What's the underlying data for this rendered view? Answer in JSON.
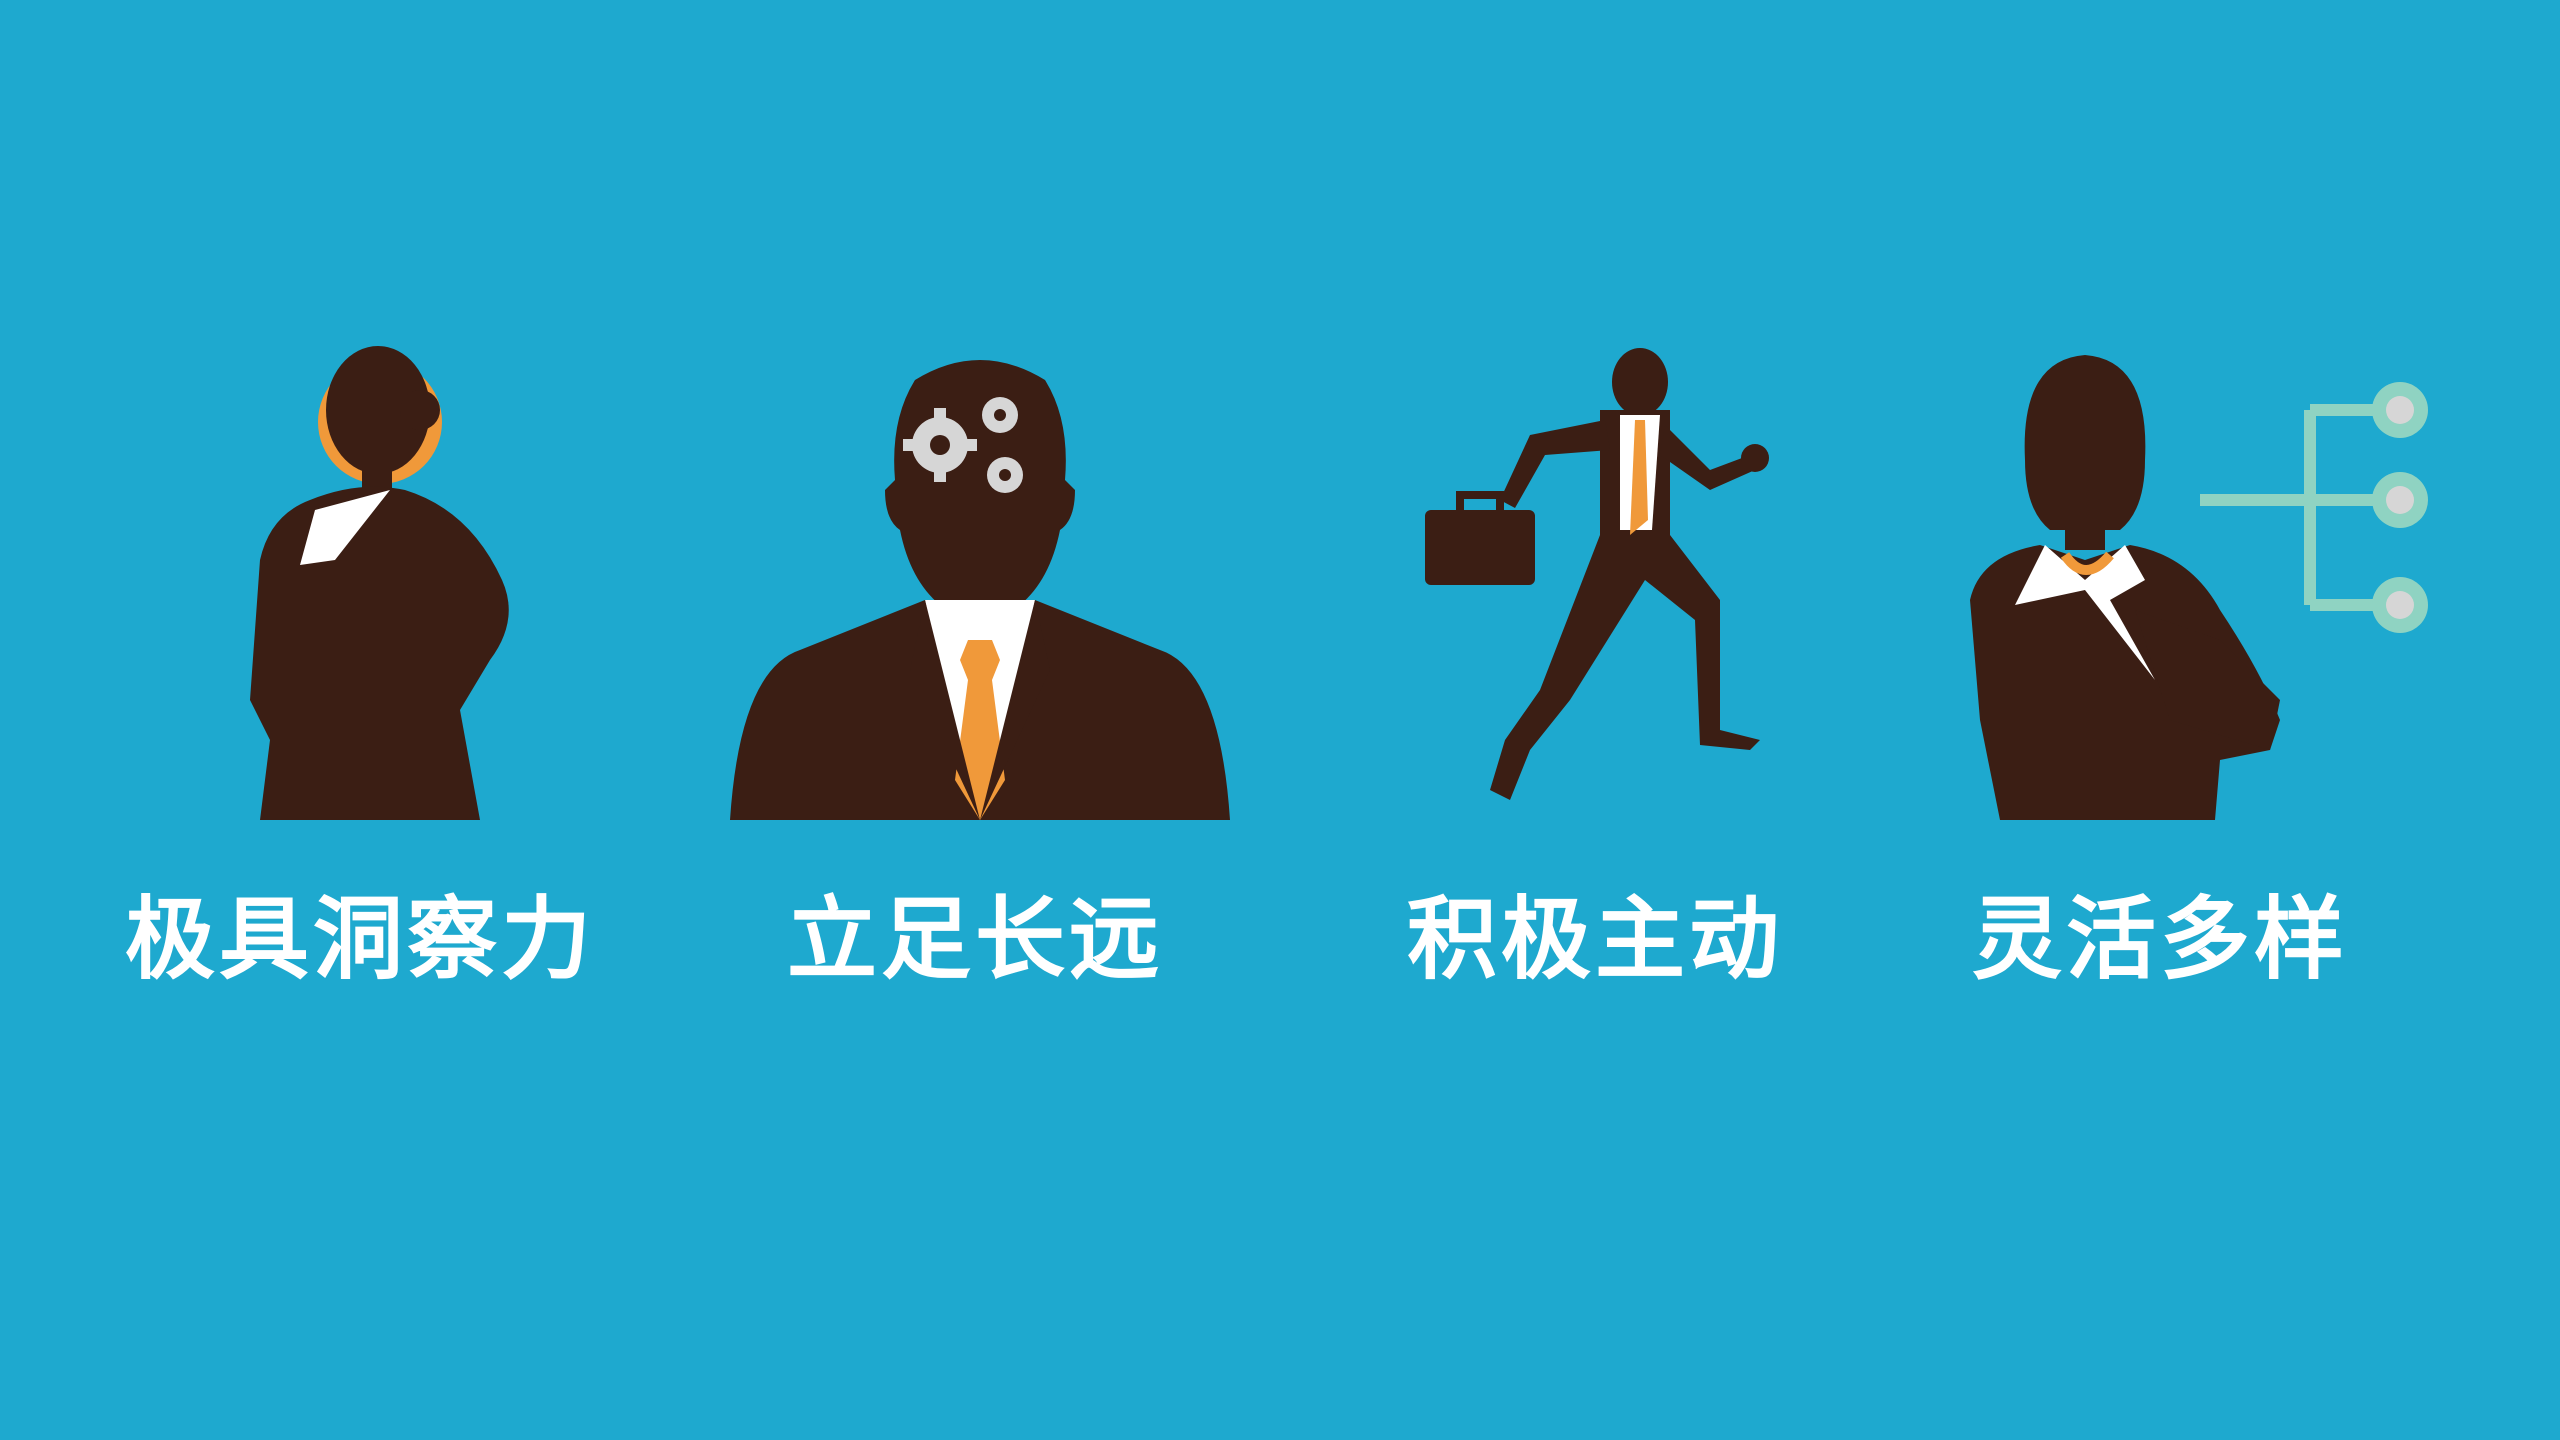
{
  "colors": {
    "background": "#1ea9cf",
    "silhouette": "#3b1e14",
    "accent": "#f0993a",
    "shirt": "#ffffff",
    "gears": "#d6d6d6",
    "network": "#8fd3c2"
  },
  "panels": [
    {
      "icon": "insightful-woman-icon",
      "label": "极具洞察力"
    },
    {
      "icon": "thinking-man-gears-icon",
      "label": "立足长远"
    },
    {
      "icon": "running-businessman-icon",
      "label": "积极主动"
    },
    {
      "icon": "woman-network-icon",
      "label": "灵活多样"
    }
  ]
}
